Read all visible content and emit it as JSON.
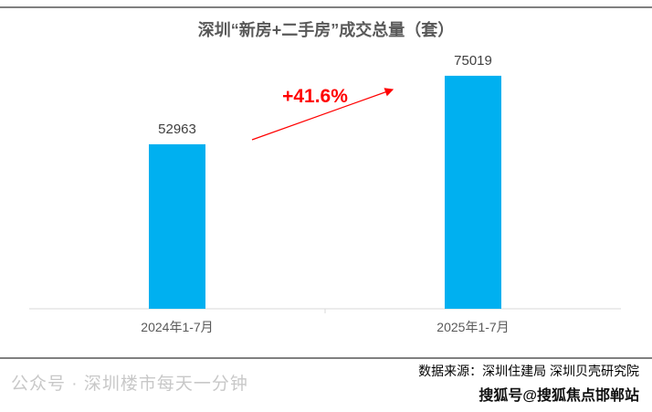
{
  "chart_data": {
    "type": "bar",
    "title": "深圳“新房+二手房”成交总量（套）",
    "categories": [
      "2024年1-7月",
      "2025年1-7月"
    ],
    "values": [
      52963,
      75019
    ],
    "ylim": [
      0,
      80000
    ],
    "grid": false,
    "bar_color": "#00B0F0",
    "annotation": {
      "text": "+41.6%",
      "color": "#FF0000"
    }
  },
  "footer": {
    "source": "数据来源：深圳住建局 深圳贝壳研究院",
    "watermark1": "公众号 · 深圳楼市每天一分钟",
    "watermark2": "搜狐号@搜狐焦点邯郸站"
  }
}
